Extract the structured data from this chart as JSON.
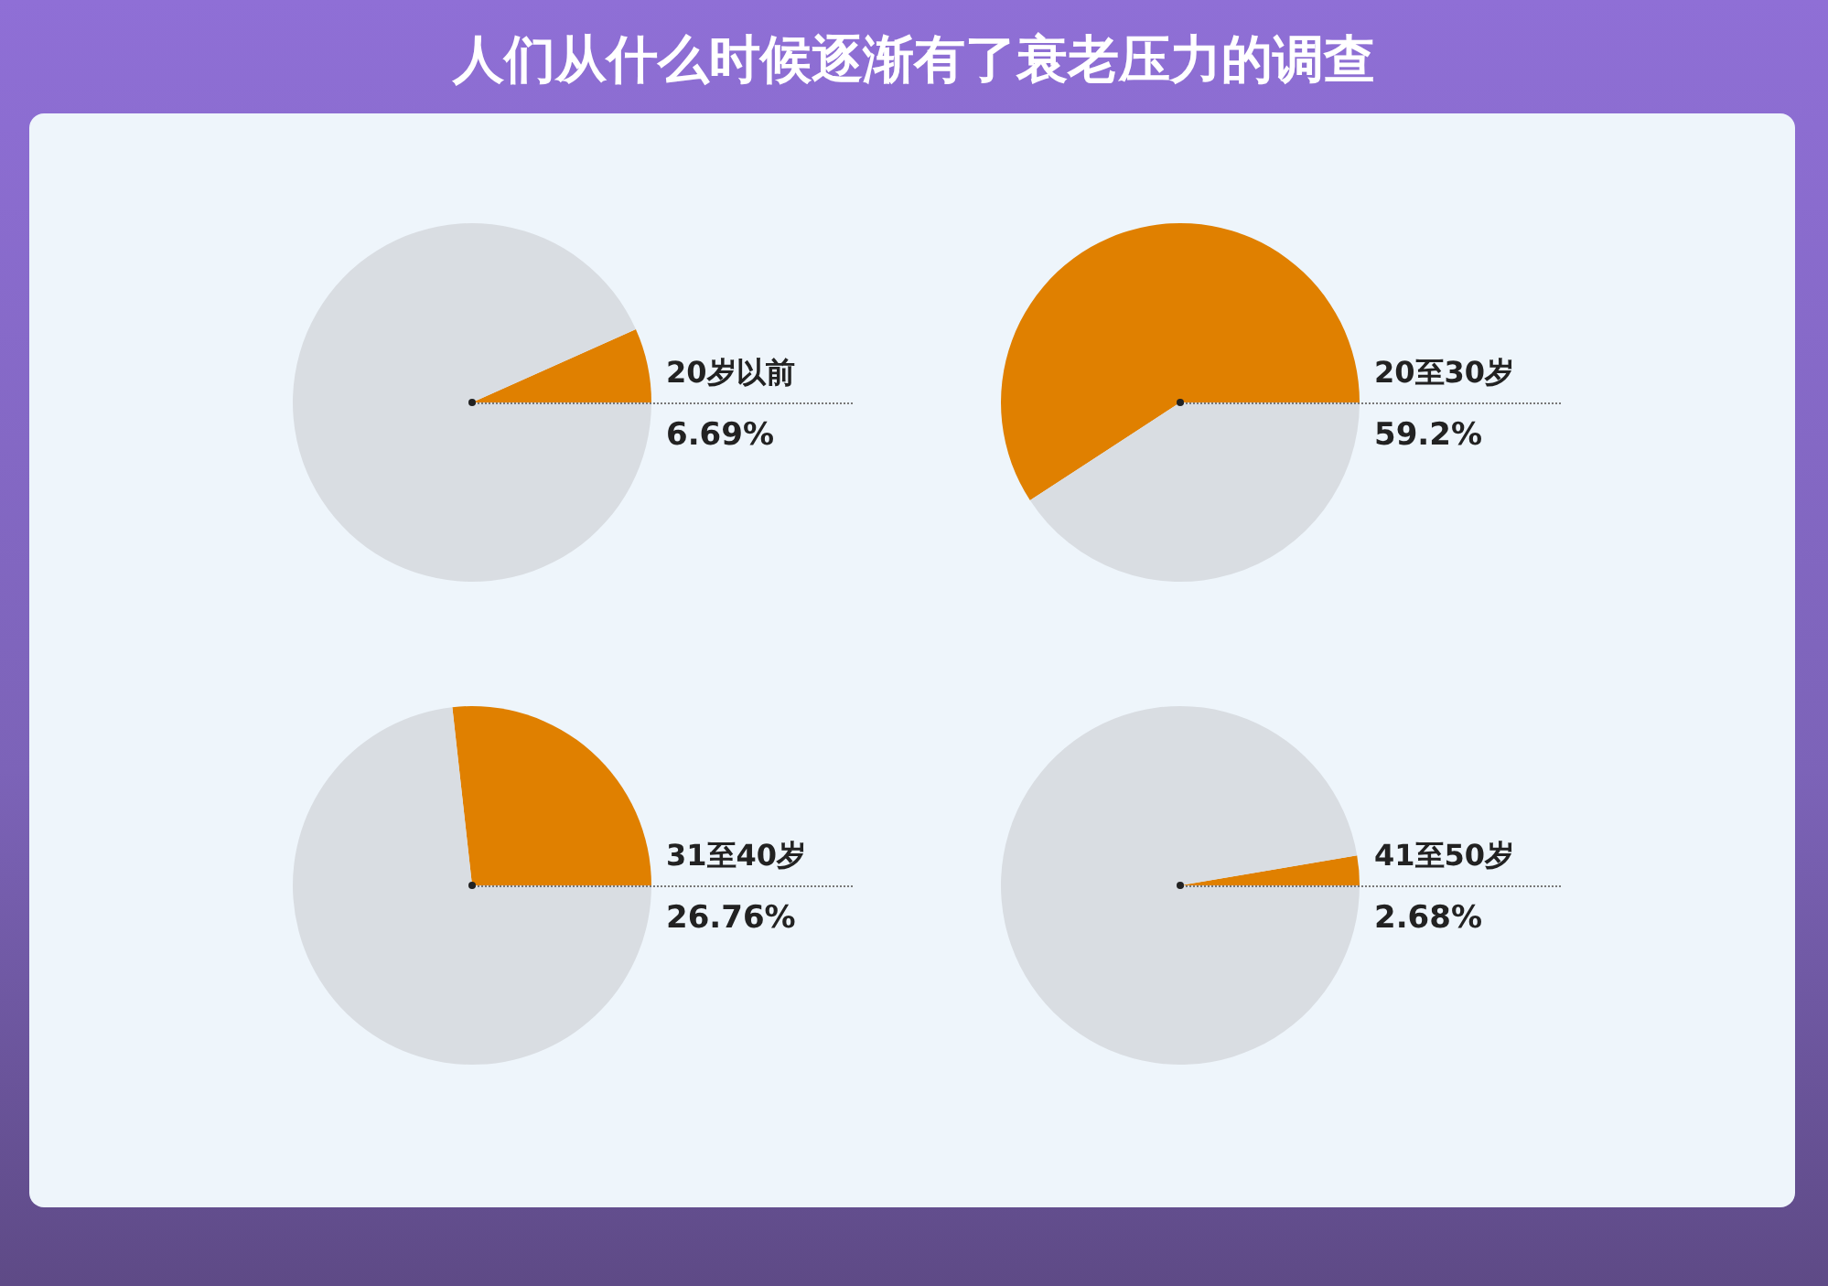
{
  "chart_data": [
    {
      "type": "pie",
      "title": "人们从什么时候逐渐有了衰老压力的调查",
      "categories": [
        "20岁以前",
        null
      ],
      "values": [
        6.69,
        93.31
      ],
      "value_labels": [
        "6.69%",
        null
      ],
      "colors": [
        "#e08000",
        "#d9dde2"
      ]
    },
    {
      "type": "pie",
      "categories": [
        "20至30岁",
        null
      ],
      "values": [
        59.2,
        40.8
      ],
      "value_labels": [
        "59.2%",
        null
      ],
      "colors": [
        "#e08000",
        "#d9dde2"
      ]
    },
    {
      "type": "pie",
      "categories": [
        "31至40岁",
        null
      ],
      "values": [
        26.76,
        73.24
      ],
      "value_labels": [
        "26.76%",
        null
      ],
      "colors": [
        "#e08000",
        "#d9dde2"
      ]
    },
    {
      "type": "pie",
      "categories": [
        "41至50岁",
        null
      ],
      "values": [
        2.68,
        97.32
      ],
      "value_labels": [
        "2.68%",
        null
      ],
      "colors": [
        "#e08000",
        "#d9dde2"
      ]
    }
  ]
}
